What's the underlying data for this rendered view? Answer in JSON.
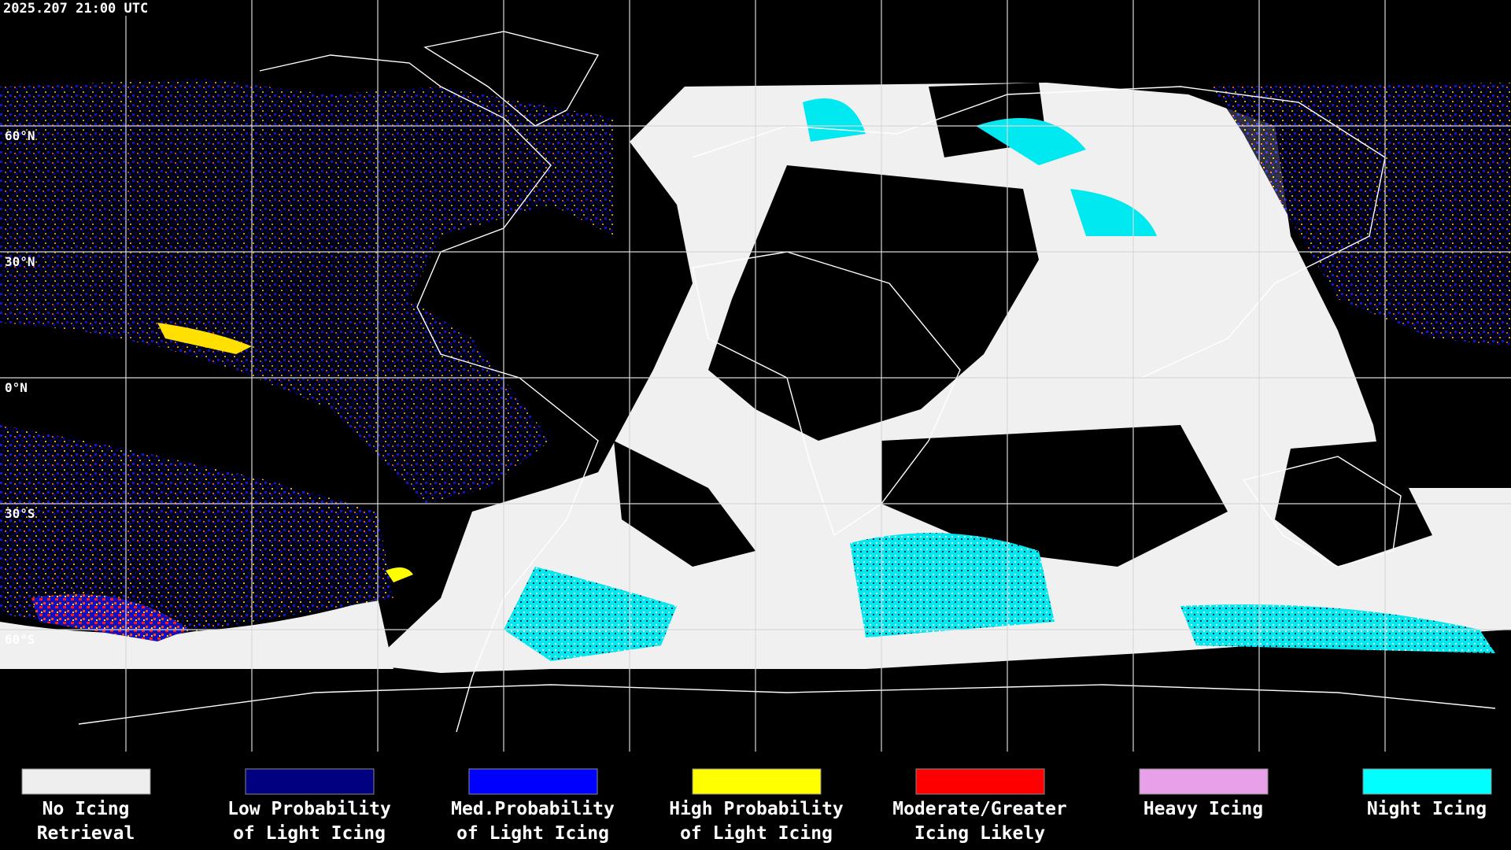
{
  "header": {
    "timestamp": "2025.207 21:00 UTC"
  },
  "map": {
    "latitude_labels": [
      "60°N",
      "30°N",
      "0°N",
      "30°S",
      "60°S"
    ]
  },
  "legend": {
    "items": [
      {
        "label_lines": [
          "No Icing",
          "Retrieval"
        ],
        "color": "#eeeeee"
      },
      {
        "label_lines": [
          "Low Probability",
          "of Light Icing"
        ],
        "color": "#000080"
      },
      {
        "label_lines": [
          "Med.Probability",
          "of Light Icing"
        ],
        "color": "#0000ff"
      },
      {
        "label_lines": [
          "High Probability",
          "of Light Icing"
        ],
        "color": "#ffff00"
      },
      {
        "label_lines": [
          "Moderate/Greater",
          "Icing Likely"
        ],
        "color": "#ff0000"
      },
      {
        "label_lines": [
          "Heavy Icing"
        ],
        "color": "#e8a0e8"
      },
      {
        "label_lines": [
          "Night Icing"
        ],
        "color": "#00ffff"
      }
    ]
  }
}
